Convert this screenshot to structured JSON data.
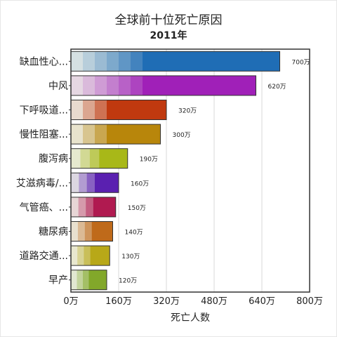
{
  "chart_data": {
    "type": "bar",
    "orientation": "horizontal",
    "stacked_gradient_segments": true,
    "title": "全球前十位死亡原因",
    "subtitle": "2011年",
    "xlabel": "死亡人数",
    "ylabel": "",
    "xlim": [
      0,
      800
    ],
    "x_ticks": [
      "0万",
      "160万",
      "320万",
      "480万",
      "640万",
      "800万"
    ],
    "grid": true,
    "categories": [
      "缺血性心...",
      "中风",
      "下呼吸道...",
      "慢性阻塞...",
      "腹泻病",
      "艾滋病毒/...",
      "气管癌、...",
      "糖尿病",
      "道路交通...",
      "早产"
    ],
    "values": [
      700,
      620,
      320,
      300,
      190,
      160,
      150,
      140,
      130,
      120
    ],
    "value_labels": [
      "700万",
      "620万",
      "320万",
      "300万",
      "190万",
      "160万",
      "150万",
      "140万",
      "130万",
      "120万"
    ],
    "colors": [
      "#1f6db5",
      "#a020b8",
      "#c0390f",
      "#b8860b",
      "#a8b818",
      "#5a20b0",
      "#b01a50",
      "#bf6a1a",
      "#b8a818",
      "#82a82a"
    ]
  }
}
